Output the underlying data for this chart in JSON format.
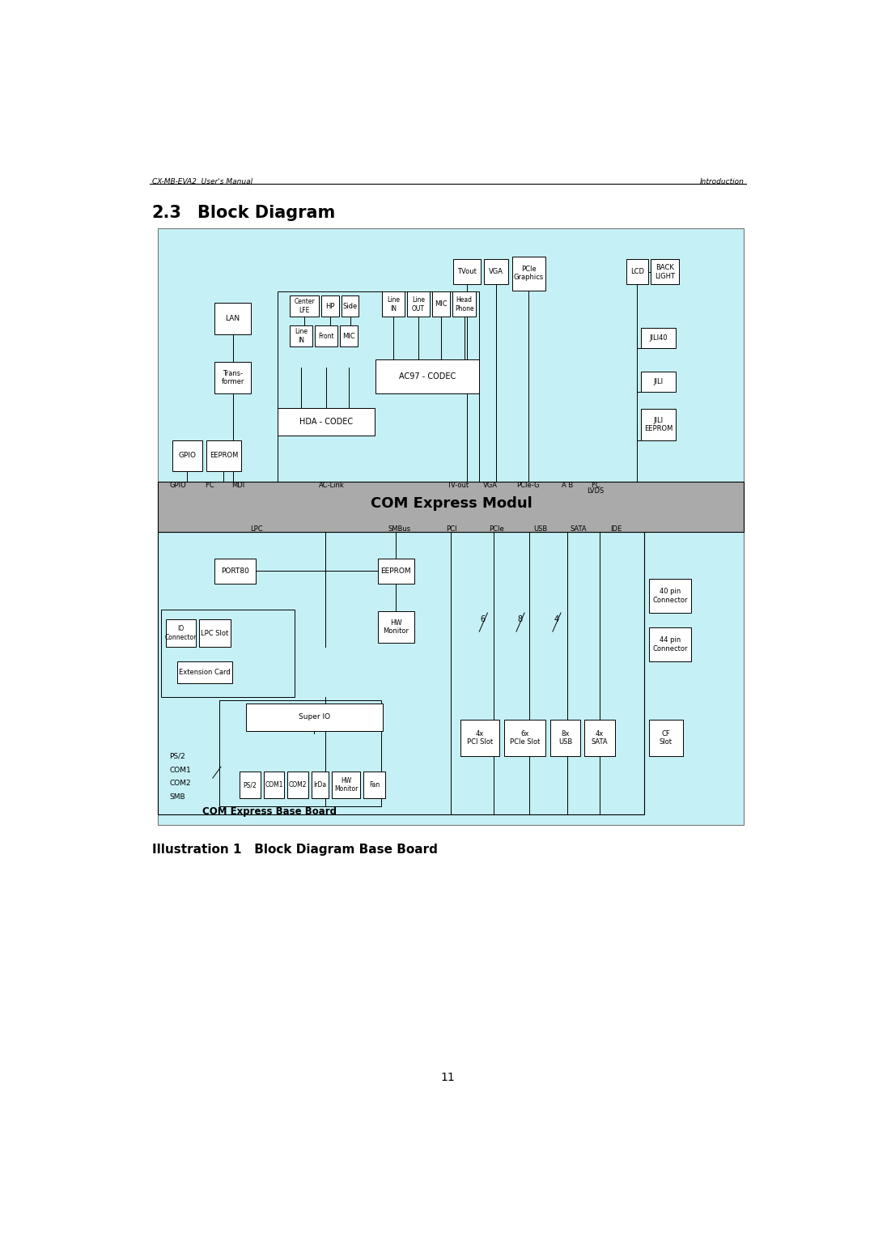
{
  "page_title_left": "CX-MB-EVA2  User's Manual",
  "page_title_right": "Introduction",
  "section_title": "2.3    Block Diagram",
  "caption": "Illustration 1   Block Diagram Base Board",
  "bg_color": "#c5f0f5",
  "box_color": "#ffffff",
  "box_edge": "#000000",
  "com_module_color": "#aaaaaa",
  "page_num": "11"
}
